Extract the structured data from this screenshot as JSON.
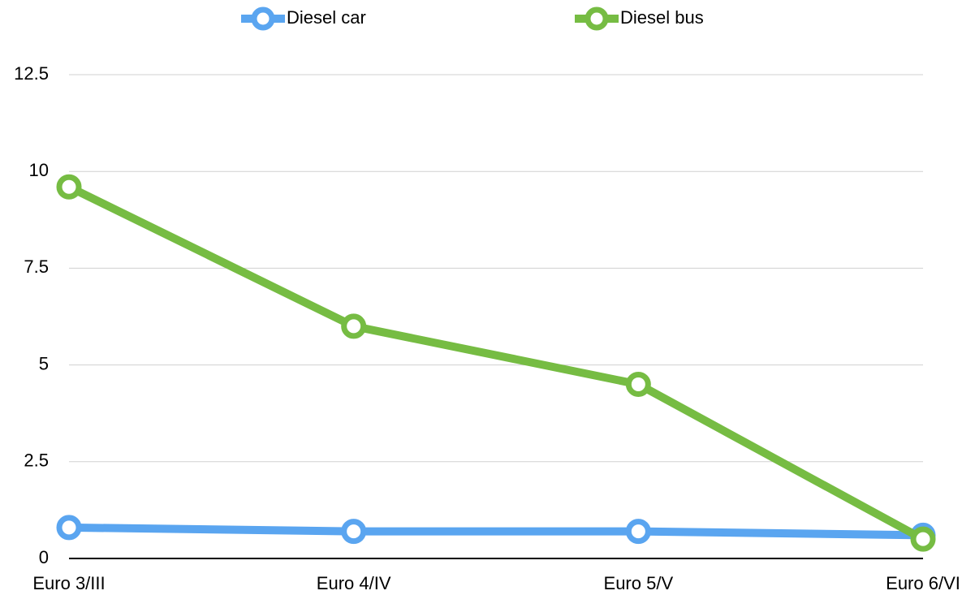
{
  "chart_data": {
    "type": "line",
    "categories": [
      "Euro 3/III",
      "Euro 4/IV",
      "Euro 5/V",
      "Euro 6/VI"
    ],
    "series": [
      {
        "name": "Diesel car",
        "color": "#5aa5f0",
        "values": [
          0.8,
          0.7,
          0.7,
          0.6
        ]
      },
      {
        "name": "Diesel bus",
        "color": "#76bc43",
        "values": [
          9.6,
          6.0,
          4.5,
          0.5
        ]
      }
    ],
    "ylim": [
      0,
      12.5
    ],
    "yticks": [
      0,
      2.5,
      5,
      7.5,
      10,
      12.5
    ],
    "grid": true,
    "legend": "top"
  }
}
